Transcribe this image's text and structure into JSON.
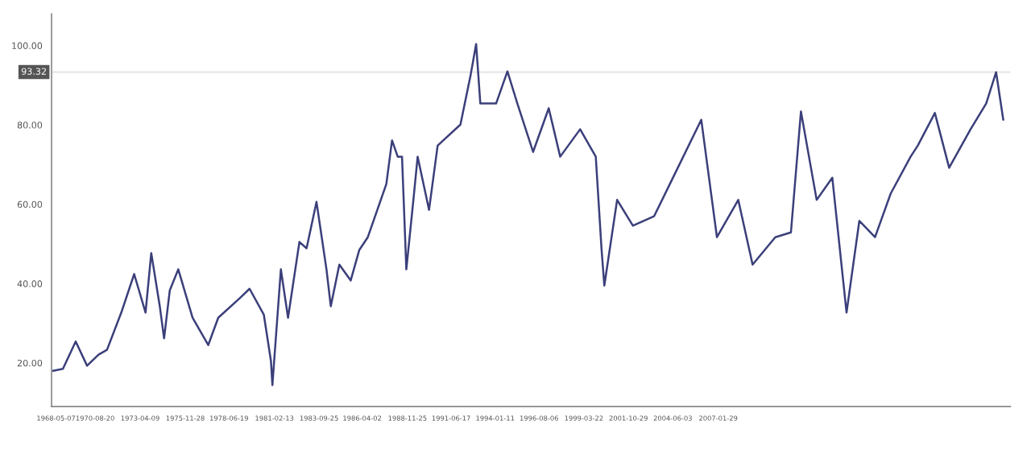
{
  "chart_data": {
    "type": "line",
    "x": [
      "1968-03",
      "1968-10",
      "1969-07",
      "1970-03",
      "1970-11",
      "1971-05",
      "1972-03",
      "1972-12",
      "1973-08",
      "1973-12",
      "1974-06",
      "1974-09",
      "1975-01",
      "1975-07",
      "1976-05",
      "1977-04",
      "1977-11",
      "1979-02",
      "1979-09",
      "1980-07",
      "1980-12",
      "1981-01",
      "1981-07",
      "1981-12",
      "1982-08",
      "1983-01",
      "1983-08",
      "1984-03",
      "1984-06",
      "1984-12",
      "1985-08",
      "1986-02",
      "1986-08",
      "1987-09",
      "1988-01",
      "1988-05",
      "1988-08",
      "1988-11",
      "1989-04",
      "1989-07",
      "1990-03",
      "1990-09",
      "1992-01",
      "1992-08",
      "1992-12",
      "1993-03",
      "1994-02",
      "1994-10",
      "1995-05",
      "1996-04",
      "1997-03",
      "1997-11",
      "1999-01",
      "1999-12",
      "2000-04",
      "2000-06",
      "2001-03",
      "2002-02",
      "2003-05",
      "2004-04",
      "2006-02",
      "2007-01",
      "2008-04",
      "2009-02",
      "2010-06",
      "2011-05",
      "2011-12",
      "2012-11",
      "2013-10",
      "2014-08",
      "2015-05",
      "2016-04",
      "2017-03",
      "2018-05",
      "2018-10",
      "2019-10",
      "2020-08",
      "2021-11",
      "2022-10",
      "2023-05",
      "2023-10"
    ],
    "series": [
      {
        "color": "#3b3f7a",
        "values": [
          18.0,
          18.5,
          25.4,
          19.3,
          22.1,
          23.3,
          32.7,
          42.4,
          32.7,
          47.7,
          34.3,
          26.2,
          38.3,
          43.6,
          31.4,
          24.5,
          31.4,
          36.3,
          38.7,
          32.2,
          20.5,
          14.4,
          43.6,
          31.4,
          50.5,
          48.9,
          60.6,
          43.6,
          34.3,
          44.8,
          40.8,
          48.5,
          51.7,
          65.1,
          76.1,
          72.0,
          72.0,
          43.6,
          61.1,
          72.0,
          58.6,
          74.8,
          80.1,
          92.3,
          100.4,
          85.4,
          85.4,
          93.5,
          85.4,
          73.2,
          84.2,
          72.0,
          78.9,
          72.0,
          48.9,
          39.5,
          61.1,
          54.6,
          57.0,
          65.1,
          81.3,
          51.7,
          61.1,
          44.8,
          51.7,
          52.9,
          83.4,
          61.1,
          66.7,
          32.7,
          55.8,
          51.7,
          62.7,
          72.0,
          74.8,
          83.0,
          69.2,
          78.9,
          85.4,
          93.3,
          81.3
        ]
      }
    ],
    "ylim": [
      9,
      108
    ],
    "yticks": [
      {
        "value": 20,
        "label": "20.00"
      },
      {
        "value": 40,
        "label": "40.00"
      },
      {
        "value": 60,
        "label": "60.00"
      },
      {
        "value": 80,
        "label": "80.00"
      },
      {
        "value": 100,
        "label": "100.00"
      }
    ],
    "xlim": [
      "1968-02",
      "2024-03"
    ],
    "xticks": [
      {
        "value": "1968-05-07",
        "label": "1968-05-07"
      },
      {
        "value": "1970-08-20",
        "label": "1970-08-20"
      },
      {
        "value": "1973-04-09",
        "label": "1973-04-09"
      },
      {
        "value": "1975-11-28",
        "label": "1975-11-28"
      },
      {
        "value": "1978-06-19",
        "label": "1978-06-19"
      },
      {
        "value": "1981-02-13",
        "label": "1981-02-13"
      },
      {
        "value": "1983-09-25",
        "label": "1983-09-25"
      },
      {
        "value": "1986-04-02",
        "label": "1986-04-02"
      },
      {
        "value": "1988-11-25",
        "label": "1988-11-25"
      },
      {
        "value": "1991-06-17",
        "label": "1991-06-17"
      },
      {
        "value": "1994-01-11",
        "label": "1994-01-11"
      },
      {
        "value": "1996-08-06",
        "label": "1996-08-06"
      },
      {
        "value": "1999-03-22",
        "label": "1999-03-22"
      },
      {
        "value": "2001-10-29",
        "label": "2001-10-29"
      },
      {
        "value": "2004-06-03",
        "label": "2004-06-03"
      },
      {
        "value": "2007-01-29",
        "label": "2007-01-29"
      }
    ],
    "ref_lines": [
      {
        "axis": "y",
        "value": 93.32,
        "label": "93.32",
        "color": "#e6e6e6",
        "line_style": "solid"
      }
    ],
    "grid": false,
    "legend": false
  }
}
